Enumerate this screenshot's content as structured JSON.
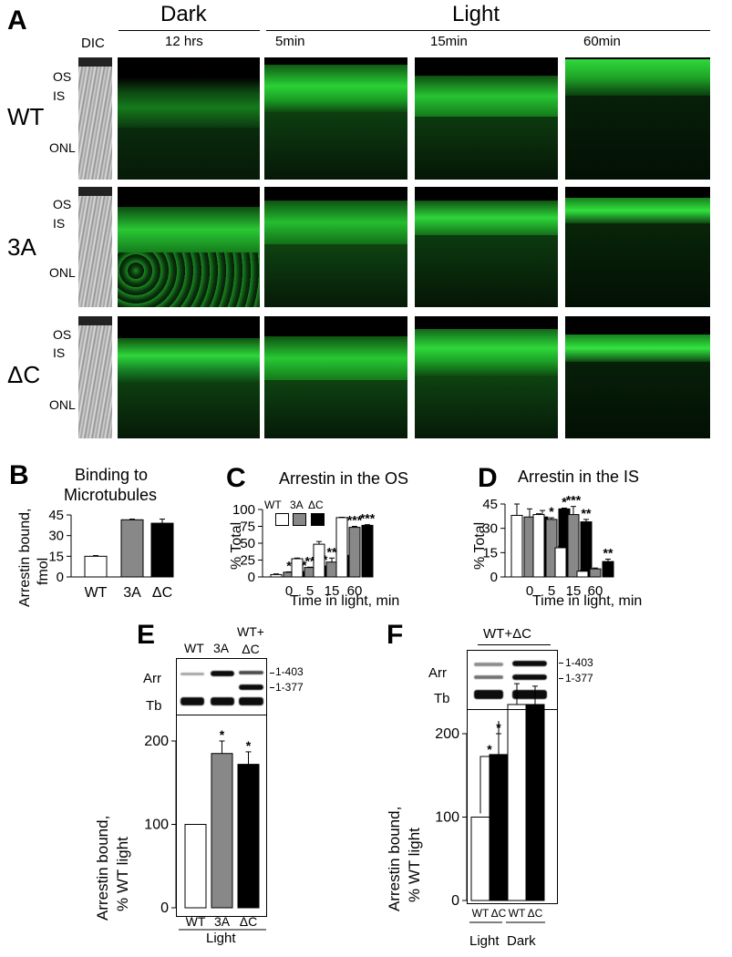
{
  "panelA": {
    "letter": "A",
    "dark_label": "Dark",
    "light_label": "Light",
    "columns": [
      "DIC",
      "12 hrs",
      "5min",
      "15min",
      "60min"
    ],
    "rows": [
      {
        "genotype": "WT",
        "layers": [
          "OS",
          "IS",
          "ONL"
        ]
      },
      {
        "genotype": "3A",
        "layers": [
          "OS",
          "IS",
          "ONL"
        ]
      },
      {
        "genotype": "ΔC",
        "layers": [
          "OS",
          "IS",
          "ONL"
        ]
      }
    ],
    "colors": {
      "fluor": "#1fbf2a",
      "background": "#000000"
    }
  },
  "panelB": {
    "letter": "B",
    "title_line1": "Binding to",
    "title_line2": "Microtubules",
    "ylabel_line1": "Arrestin bound,",
    "ylabel_line2": "fmol"
  },
  "panelC": {
    "letter": "C",
    "title": "Arrestin in the OS",
    "ylabel": "% Total",
    "xlabel": "Time in light, min",
    "legend": [
      "WT",
      "3A",
      "ΔC"
    ]
  },
  "panelD": {
    "letter": "D",
    "title": "Arrestin in the IS",
    "ylabel": "% Total",
    "xlabel": "Time in light, min"
  },
  "panelE": {
    "letter": "E",
    "lanes": [
      "WT",
      "3A",
      "WT+\nΔC"
    ],
    "blot_rows": [
      "Arr",
      "Tb"
    ],
    "band_labels": [
      "1-403",
      "1-377"
    ],
    "ylabel_line1": "Arrestin  bound,",
    "ylabel_line2": "% WT light",
    "group_label": "Light"
  },
  "panelF": {
    "letter": "F",
    "header": "WT+ΔC",
    "blot_rows": [
      "Arr",
      "Tb"
    ],
    "band_labels": [
      "1-403",
      "1-377"
    ],
    "ylabel_line1": "Arrestin  bound,",
    "ylabel_line2": "% WT light",
    "group_labels": [
      "Light",
      "Dark"
    ]
  },
  "chart_data": [
    {
      "id": "B",
      "type": "bar",
      "title": "Binding to Microtubules",
      "ylabel": "Arrestin bound, fmol",
      "ylim": [
        0,
        45
      ],
      "yticks": [
        0,
        15,
        30,
        45
      ],
      "categories": [
        "WT",
        "3A",
        "ΔC"
      ],
      "values": [
        15,
        41.5,
        39
      ],
      "errors": [
        0.5,
        0.5,
        3
      ],
      "colors": [
        "#ffffff",
        "#888888",
        "#000000"
      ]
    },
    {
      "id": "C",
      "type": "bar",
      "title": "Arrestin in the OS",
      "xlabel": "Time in light, min",
      "ylabel": "% Total",
      "ylim": [
        0,
        100
      ],
      "yticks": [
        0,
        25,
        50,
        75,
        100
      ],
      "categories": [
        "0",
        "5",
        "15",
        "60"
      ],
      "series": [
        {
          "name": "WT",
          "color": "#ffffff",
          "values": [
            3.5,
            27,
            48.5,
            88
          ],
          "errors": [
            1,
            1,
            4,
            0.5
          ],
          "stars": [
            "",
            "",
            "",
            ""
          ]
        },
        {
          "name": "3A",
          "color": "#888888",
          "values": [
            7,
            14,
            22,
            73.5
          ],
          "errors": [
            0.5,
            0.5,
            6,
            1.5
          ],
          "stars": [
            "*",
            "**",
            "**",
            "***"
          ]
        },
        {
          "name": "ΔC",
          "color": "#000000",
          "values": [
            7.5,
            16,
            32,
            76.5
          ],
          "errors": [
            0.5,
            0.5,
            1,
            1
          ],
          "stars": [
            "**",
            "**",
            "*",
            "***"
          ]
        }
      ]
    },
    {
      "id": "D",
      "type": "bar",
      "title": "Arrestin in the IS",
      "xlabel": "Time in light, min",
      "ylabel": "% Total",
      "ylim": [
        0,
        45
      ],
      "yticks": [
        0,
        15,
        30,
        45
      ],
      "categories": [
        "0",
        "5",
        "15",
        "60"
      ],
      "series": [
        {
          "name": "WT",
          "color": "#ffffff",
          "values": [
            38,
            38.5,
            18,
            3.5
          ],
          "errors": [
            7,
            0.5,
            1,
            0.5
          ],
          "stars": [
            "",
            "",
            "",
            ""
          ]
        },
        {
          "name": "3A",
          "color": "#888888",
          "values": [
            37,
            35.5,
            38.5,
            5
          ],
          "errors": [
            5,
            1,
            5,
            0.5
          ],
          "stars": [
            "",
            "*",
            "***",
            ""
          ]
        },
        {
          "name": "ΔC",
          "color": "#000000",
          "values": [
            37,
            42,
            34,
            9.5
          ],
          "errors": [
            4,
            0.5,
            1.5,
            1.5
          ],
          "stars": [
            "",
            "*",
            "**",
            "**"
          ]
        }
      ]
    },
    {
      "id": "E",
      "type": "bar",
      "xlabel": "Light",
      "ylabel": "Arrestin bound, % WT light",
      "ylim": [
        0,
        200
      ],
      "yticks": [
        0,
        100,
        200
      ],
      "categories": [
        "WT",
        "3A",
        "ΔC"
      ],
      "values": [
        100,
        185,
        172
      ],
      "errors": [
        0,
        15,
        15
      ],
      "stars": [
        "",
        "*",
        "*"
      ],
      "colors": [
        "#ffffff",
        "#888888",
        "#000000"
      ]
    },
    {
      "id": "F",
      "type": "bar",
      "ylabel": "Arrestin bound, % WT light",
      "ylim": [
        0,
        200
      ],
      "yticks": [
        0,
        100,
        200
      ],
      "groups": [
        "Light",
        "Dark"
      ],
      "categories": [
        "WT",
        "ΔC",
        "WT",
        "ΔC"
      ],
      "values": [
        100,
        175,
        235,
        235
      ],
      "errors": [
        0,
        25,
        25,
        22
      ],
      "stars": [
        "",
        "*",
        "",
        ""
      ],
      "colors": [
        "#ffffff",
        "#000000",
        "#ffffff",
        "#000000"
      ],
      "bracket_star": "*"
    }
  ]
}
